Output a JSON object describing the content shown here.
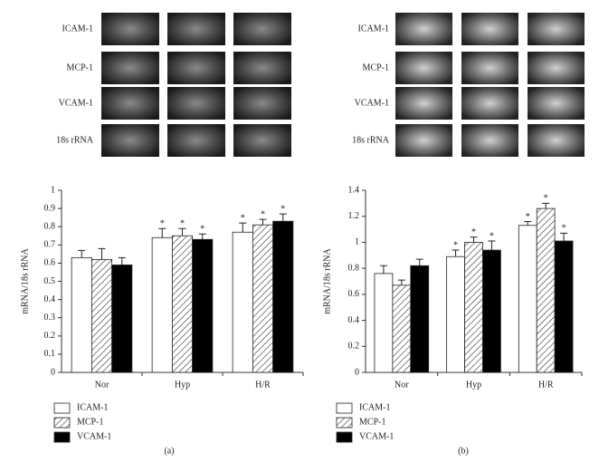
{
  "chart_data": [
    {
      "type": "bar",
      "panel_label": "(a)",
      "y_label": "mRNA/18s rRNA",
      "gel_labels": [
        "ICAM-1",
        "MCP-1",
        "VCAM-1",
        "18s rRNA"
      ],
      "categories": [
        "Nor",
        "Hyp",
        "H/R"
      ],
      "series": [
        {
          "name": "ICAM-1",
          "color": "#ffffff",
          "hatch": false,
          "values": [
            0.63,
            0.74,
            0.77
          ],
          "errors": [
            0.04,
            0.05,
            0.05
          ],
          "markers": [
            null,
            "*",
            "*"
          ]
        },
        {
          "name": "MCP-1",
          "color": "#ffffff",
          "hatch": true,
          "values": [
            0.62,
            0.75,
            0.81
          ],
          "errors": [
            0.06,
            0.04,
            0.03
          ],
          "markers": [
            null,
            "*",
            "*"
          ]
        },
        {
          "name": "VCAM-1",
          "color": "#000000",
          "hatch": false,
          "values": [
            0.59,
            0.73,
            0.83
          ],
          "errors": [
            0.04,
            0.03,
            0.04
          ],
          "markers": [
            null,
            "*",
            "*"
          ]
        }
      ],
      "ylim": [
        0,
        1
      ],
      "yticks": [
        0,
        0.1,
        0.2,
        0.3,
        0.4,
        0.5,
        0.6,
        0.7,
        0.8,
        0.9,
        1
      ]
    },
    {
      "type": "bar",
      "panel_label": "(b)",
      "y_label": "mRNA/18s rRNA",
      "gel_labels": [
        "ICAM-1",
        "MCP-1",
        "VCAM-1",
        "18s rRNA"
      ],
      "categories": [
        "Nor",
        "Hyp",
        "H/R"
      ],
      "series": [
        {
          "name": "ICAM-1",
          "color": "#ffffff",
          "hatch": false,
          "values": [
            0.76,
            0.89,
            1.13
          ],
          "errors": [
            0.06,
            0.05,
            0.03
          ],
          "markers": [
            null,
            "*",
            "*"
          ]
        },
        {
          "name": "MCP-1",
          "color": "#ffffff",
          "hatch": true,
          "values": [
            0.67,
            1.0,
            1.26
          ],
          "errors": [
            0.04,
            0.04,
            0.04
          ],
          "markers": [
            null,
            "*",
            "*"
          ]
        },
        {
          "name": "VCAM-1",
          "color": "#000000",
          "hatch": false,
          "values": [
            0.82,
            0.94,
            1.01
          ],
          "errors": [
            0.05,
            0.07,
            0.06
          ],
          "markers": [
            null,
            "*",
            "*"
          ]
        }
      ],
      "ylim": [
        0,
        1.4
      ],
      "yticks": [
        0,
        0.2,
        0.4,
        0.6,
        0.8,
        1,
        1.2,
        1.4
      ]
    }
  ]
}
